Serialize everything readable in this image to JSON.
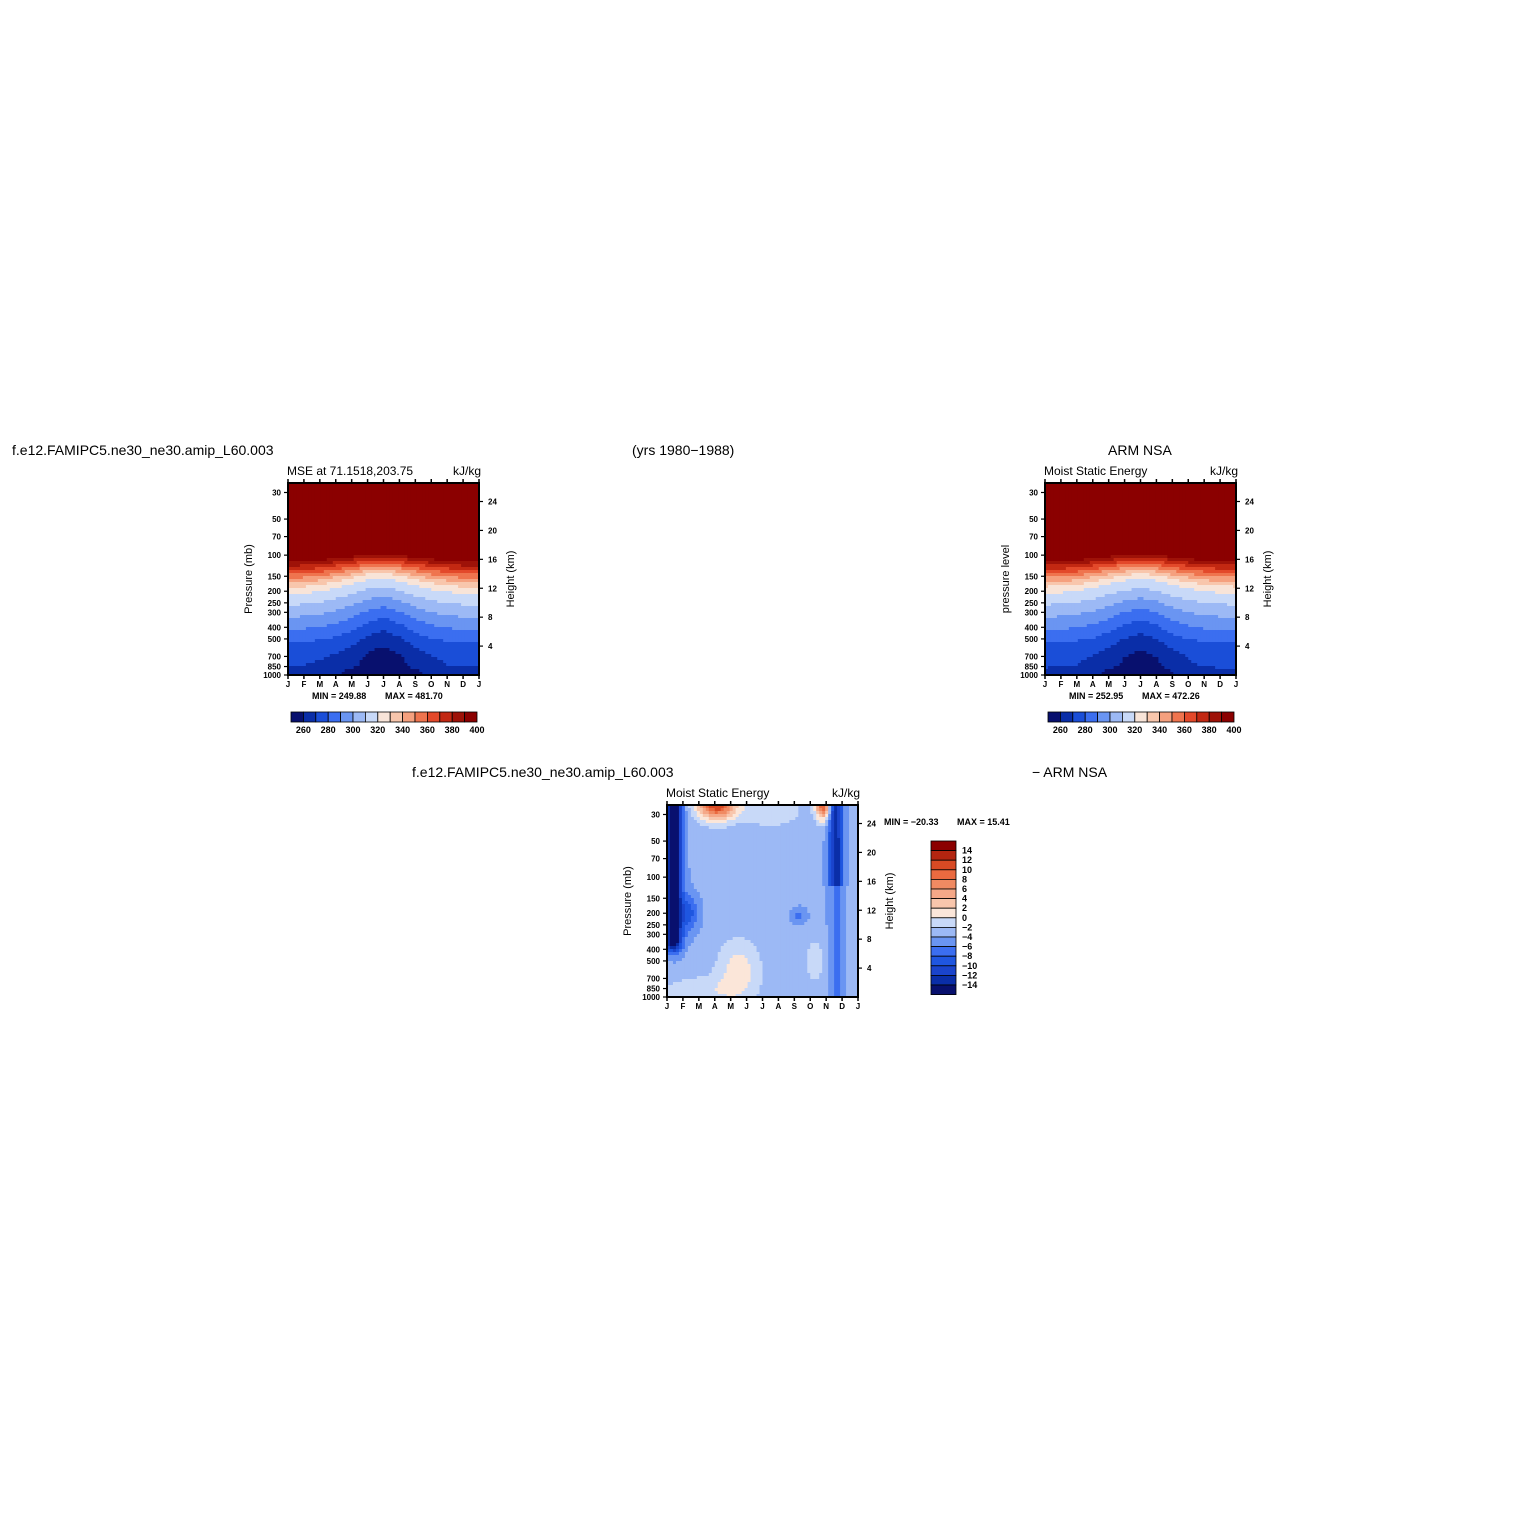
{
  "header": {
    "case_name": "f.e12.FAMIPC5.ne30_ne30.amip_L60.003",
    "years": "(yrs 1980−1988)",
    "obs_name": "ARM NSA",
    "diff_case": "f.e12.FAMIPC5.ne30_ne30.amip_L60.003",
    "diff_obs": "− ARM NSA"
  },
  "colors": {
    "seq15": [
      "#08106e",
      "#0a2ea8",
      "#1a4ed8",
      "#3b6ef0",
      "#6a95f2",
      "#9cb9f5",
      "#c8d9f8",
      "#f8e4d8",
      "#f8c6ac",
      "#f5a07e",
      "#ef744e",
      "#e3492a",
      "#c22812",
      "#9e1208",
      "#8b0000"
    ],
    "diff16": [
      "#08106e",
      "#0a2ea8",
      "#1a44cc",
      "#1f56e0",
      "#3b6ef0",
      "#6a95f2",
      "#9cb9f5",
      "#c8d9f8",
      "#fbe6d9",
      "#f8c6ac",
      "#f5a888",
      "#f08a62",
      "#ea6a40",
      "#d84a24",
      "#b32510",
      "#8b0000"
    ]
  },
  "chart_data": [
    {
      "type": "heatmap",
      "title": "MSE at 71.1518,203.75",
      "units": "kJ/kg",
      "ylabel": "Pressure (mb)",
      "ylabel_right": "Height (km)",
      "x_ticks": [
        "J",
        "F",
        "M",
        "A",
        "M",
        "J",
        "J",
        "A",
        "S",
        "O",
        "N",
        "D",
        "J"
      ],
      "y_ticks": [
        30,
        50,
        70,
        100,
        150,
        200,
        250,
        300,
        400,
        500,
        700,
        850,
        1000
      ],
      "y_right_ticks": [
        24,
        20,
        16,
        12,
        8,
        4
      ],
      "ylim": [
        1000,
        25
      ],
      "y_scale": "log",
      "min_text": "MIN = 249.88",
      "max_text": "MAX = 481.70",
      "colorbar_levels": [
        260,
        280,
        300,
        320,
        340,
        360,
        380,
        400
      ],
      "colorbar_orientation": "horizontal",
      "z_range": [
        249.88,
        481.7
      ],
      "tropopause_trough_hPa": [
        205,
        200,
        193,
        180,
        168,
        155,
        150,
        160,
        172,
        185,
        195,
        202,
        205
      ],
      "lower_mse_profile": [
        272,
        271,
        270,
        268,
        263,
        255,
        250,
        255,
        264,
        269,
        271,
        272,
        272
      ]
    },
    {
      "type": "heatmap",
      "title": "Moist Static Energy",
      "units": "kJ/kg",
      "ylabel": "pressure level",
      "ylabel_right": "Height (km)",
      "x_ticks": [
        "J",
        "F",
        "M",
        "A",
        "M",
        "J",
        "J",
        "A",
        "S",
        "O",
        "N",
        "D",
        "J"
      ],
      "y_ticks": [
        30,
        50,
        70,
        100,
        150,
        200,
        250,
        300,
        400,
        500,
        700,
        850,
        1000
      ],
      "y_right_ticks": [
        24,
        20,
        16,
        12,
        8,
        4
      ],
      "ylim": [
        1000,
        25
      ],
      "y_scale": "log",
      "min_text": "MIN = 252.95",
      "max_text": "MAX = 472.26",
      "colorbar_levels": [
        260,
        280,
        300,
        320,
        340,
        360,
        380,
        400
      ],
      "colorbar_orientation": "horizontal",
      "z_range": [
        252.95,
        472.26
      ],
      "tropopause_trough_hPa": [
        200,
        198,
        192,
        180,
        168,
        158,
        152,
        158,
        170,
        182,
        192,
        198,
        200
      ],
      "lower_mse_profile": [
        273,
        272,
        271,
        269,
        264,
        257,
        253,
        257,
        266,
        270,
        272,
        273,
        273
      ]
    },
    {
      "type": "heatmap",
      "title": "Moist Static Energy",
      "units": "kJ/kg",
      "ylabel": "Pressure (mb)",
      "ylabel_right": "Height (km)",
      "x_ticks": [
        "J",
        "F",
        "M",
        "A",
        "M",
        "J",
        "J",
        "A",
        "S",
        "O",
        "N",
        "D",
        "J"
      ],
      "y_ticks": [
        30,
        50,
        70,
        100,
        150,
        200,
        250,
        300,
        400,
        500,
        700,
        850,
        1000
      ],
      "y_right_ticks": [
        24,
        20,
        16,
        12,
        8,
        4
      ],
      "ylim": [
        1000,
        25
      ],
      "y_scale": "log",
      "min_text": "MIN = −20.33",
      "max_text": "MAX =   15.41",
      "colorbar_levels": [
        14,
        12,
        10,
        8,
        6,
        4,
        2,
        0,
        -2,
        -4,
        -6,
        -8,
        -10,
        -12,
        -14
      ],
      "colorbar_level_labels": [
        "14",
        "12",
        "10",
        "8",
        "6",
        "4",
        "2",
        "0",
        "−2",
        "−4",
        "−6",
        "−8",
        "−10",
        "−12",
        "−14"
      ],
      "colorbar_orientation": "vertical",
      "z_range": [
        -20.33,
        15.41
      ]
    }
  ]
}
